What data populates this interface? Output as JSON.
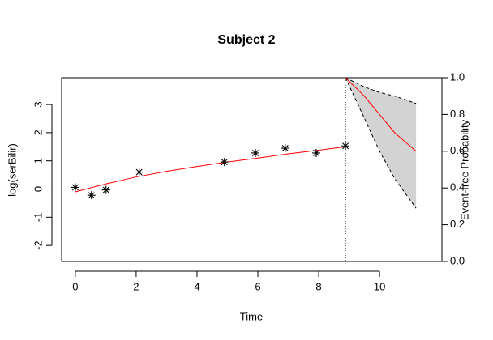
{
  "chart_data": {
    "type": "line",
    "title": "Subject 2",
    "xlabel": "Time",
    "ylabel": "log(serBilir)",
    "y2label": "Event-free Probability",
    "xlim": [
      -0.45,
      12.05
    ],
    "xticks": [
      0,
      2,
      4,
      6,
      8,
      10
    ],
    "ylim": [
      -2.57,
      3.95
    ],
    "yticks": [
      -2,
      -1,
      0,
      1,
      2,
      3
    ],
    "y2lim": [
      0,
      1
    ],
    "y2ticks": [
      {
        "value": 0,
        "label": "0.0"
      },
      0.2,
      0.4,
      0.6,
      0.8,
      {
        "value": 1,
        "label": "1.0"
      }
    ],
    "vline": 8.88,
    "points": {
      "x": [
        0.0,
        0.53,
        1.01,
        2.1,
        4.9,
        5.92,
        6.9,
        7.92,
        8.88
      ],
      "values": [
        0.06,
        -0.22,
        -0.03,
        0.6,
        0.96,
        1.28,
        1.45,
        1.28,
        1.53
      ],
      "color": "#000000"
    },
    "series": [
      {
        "x": [
          0,
          1,
          2,
          3,
          4,
          5,
          6,
          7,
          8,
          8.88
        ],
        "values": [
          -0.1,
          0.18,
          0.43,
          0.63,
          0.8,
          0.96,
          1.1,
          1.25,
          1.38,
          1.5
        ],
        "color": "#ff0000"
      },
      {
        "x": [
          8.88,
          9.5,
          10,
          10.5,
          11.2
        ],
        "values": [
          1.0,
          0.9,
          0.8,
          0.7,
          0.6
        ],
        "color": "#ff0000",
        "axis": "y2"
      }
    ],
    "band": {
      "x": [
        8.88,
        9.5,
        10,
        10.5,
        11.2
      ],
      "lower": [
        1.0,
        0.78,
        0.6,
        0.45,
        0.29
      ],
      "upper": [
        1.0,
        0.95,
        0.92,
        0.9,
        0.86
      ],
      "fill": "#d3d3d3",
      "axis": "y2"
    }
  }
}
